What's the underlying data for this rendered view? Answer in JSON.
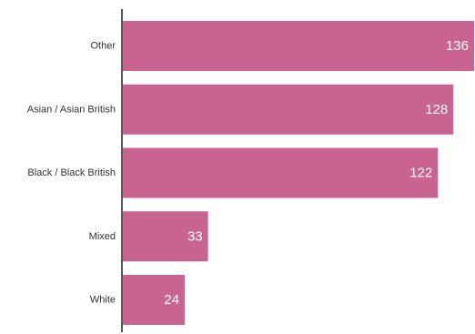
{
  "chart_data": {
    "type": "bar",
    "orientation": "horizontal",
    "categories": [
      "Other",
      "Asian / Asian British",
      "Black / Black British",
      "Mixed",
      "White"
    ],
    "values": [
      136,
      128,
      122,
      33,
      24
    ],
    "value_labels": [
      "136",
      "128",
      "122",
      "33",
      "24"
    ],
    "xlim": [
      0,
      136
    ],
    "grid": false,
    "legend": "none",
    "bar_color": "#c9638f",
    "axis_color": "#222222",
    "label_color": "#333333",
    "value_label_color": "#ffffff"
  }
}
